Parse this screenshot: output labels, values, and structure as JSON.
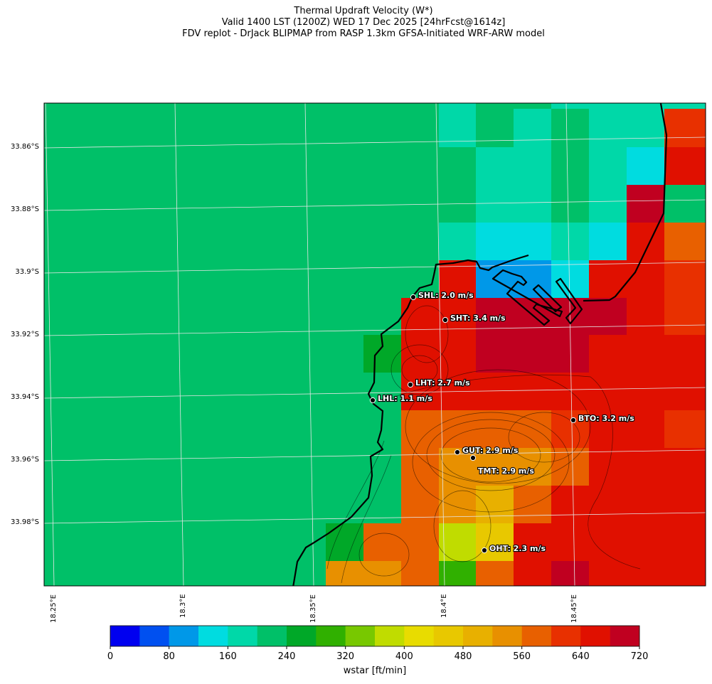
{
  "title": {
    "line1": "Thermal Updraft Velocity (W*)",
    "line2": "Valid 1400 LST (1200Z) WED 17 Dec 2025 [24hrFcst@1614z]",
    "line3": "FDV replot - DrJack BLIPMAP from RASP 1.3km GFSA-Initiated WRF-ARW model"
  },
  "axes": {
    "lat_labels": [
      "33.86°S",
      "33.88°S",
      "33.9°S",
      "33.92°S",
      "33.94°S",
      "33.96°S",
      "33.98°S"
    ],
    "lon_labels": [
      "18.25°E",
      "18.3°E",
      "18.35°E",
      "18.4°E",
      "18.45°E"
    ]
  },
  "colorbar": {
    "label": "wstar [ft/min]",
    "levels": [
      0,
      40,
      80,
      120,
      160,
      200,
      240,
      280,
      320,
      360,
      400,
      440,
      480,
      520,
      560,
      600,
      640,
      680,
      720
    ],
    "tick_labels": [
      "0",
      "80",
      "160",
      "240",
      "320",
      "400",
      "480",
      "560",
      "640",
      "720"
    ],
    "colors": [
      "#0000f0",
      "#0050f0",
      "#0098e8",
      "#00dce0",
      "#00d8a8",
      "#00c068",
      "#00a828",
      "#30b000",
      "#78c800",
      "#c0dc00",
      "#e8dc00",
      "#e8c800",
      "#e8b000",
      "#e89000",
      "#e86000",
      "#e83000",
      "#e01000",
      "#c00020"
    ]
  },
  "field": {
    "background_bin": 5,
    "cells": [
      [
        5,
        5,
        5,
        5,
        4,
        5,
        5,
        4,
        4,
        4,
        4
      ],
      [
        5,
        5,
        5,
        5,
        4,
        5,
        4,
        5,
        4,
        4,
        15
      ],
      [
        5,
        5,
        5,
        5,
        5,
        4,
        4,
        5,
        4,
        3,
        16
      ],
      [
        5,
        5,
        5,
        5,
        5,
        4,
        4,
        5,
        4,
        17,
        5
      ],
      [
        5,
        5,
        5,
        5,
        4,
        3,
        3,
        4,
        3,
        16,
        14
      ],
      [
        5,
        5,
        5,
        5,
        16,
        2,
        2,
        3,
        16,
        16,
        15
      ],
      [
        5,
        5,
        5,
        16,
        16,
        17,
        17,
        17,
        17,
        16,
        15
      ],
      [
        5,
        5,
        6,
        16,
        16,
        17,
        17,
        17,
        16,
        16,
        16
      ],
      [
        5,
        5,
        5,
        16,
        16,
        16,
        16,
        16,
        16,
        16,
        16
      ],
      [
        5,
        5,
        5,
        14,
        14,
        14,
        14,
        15,
        16,
        16,
        15
      ],
      [
        5,
        5,
        5,
        14,
        13,
        13,
        13,
        14,
        16,
        16,
        16
      ],
      [
        5,
        5,
        5,
        14,
        13,
        12,
        14,
        16,
        16,
        16,
        16
      ],
      [
        5,
        6,
        14,
        14,
        9,
        11,
        16,
        16,
        16,
        16,
        16
      ],
      [
        5,
        13,
        13,
        14,
        7,
        14,
        16,
        17,
        16,
        16,
        16
      ]
    ]
  },
  "stations": [
    {
      "id": "SHL",
      "label": "SHL: 2.0 m/s"
    },
    {
      "id": "SHT",
      "label": "SHT: 3.4 m/s"
    },
    {
      "id": "LHT",
      "label": "LHT: 2.7 m/s"
    },
    {
      "id": "LHL",
      "label": "LHL: 1.1 m/s"
    },
    {
      "id": "BTO",
      "label": "BTO: 3.2 m/s"
    },
    {
      "id": "GUT",
      "label": "GUT: 2.9 m/s"
    },
    {
      "id": "TMT",
      "label": "TMT: 2.9 m/s"
    },
    {
      "id": "OHT",
      "label": "OHT: 2.3 m/s"
    }
  ]
}
